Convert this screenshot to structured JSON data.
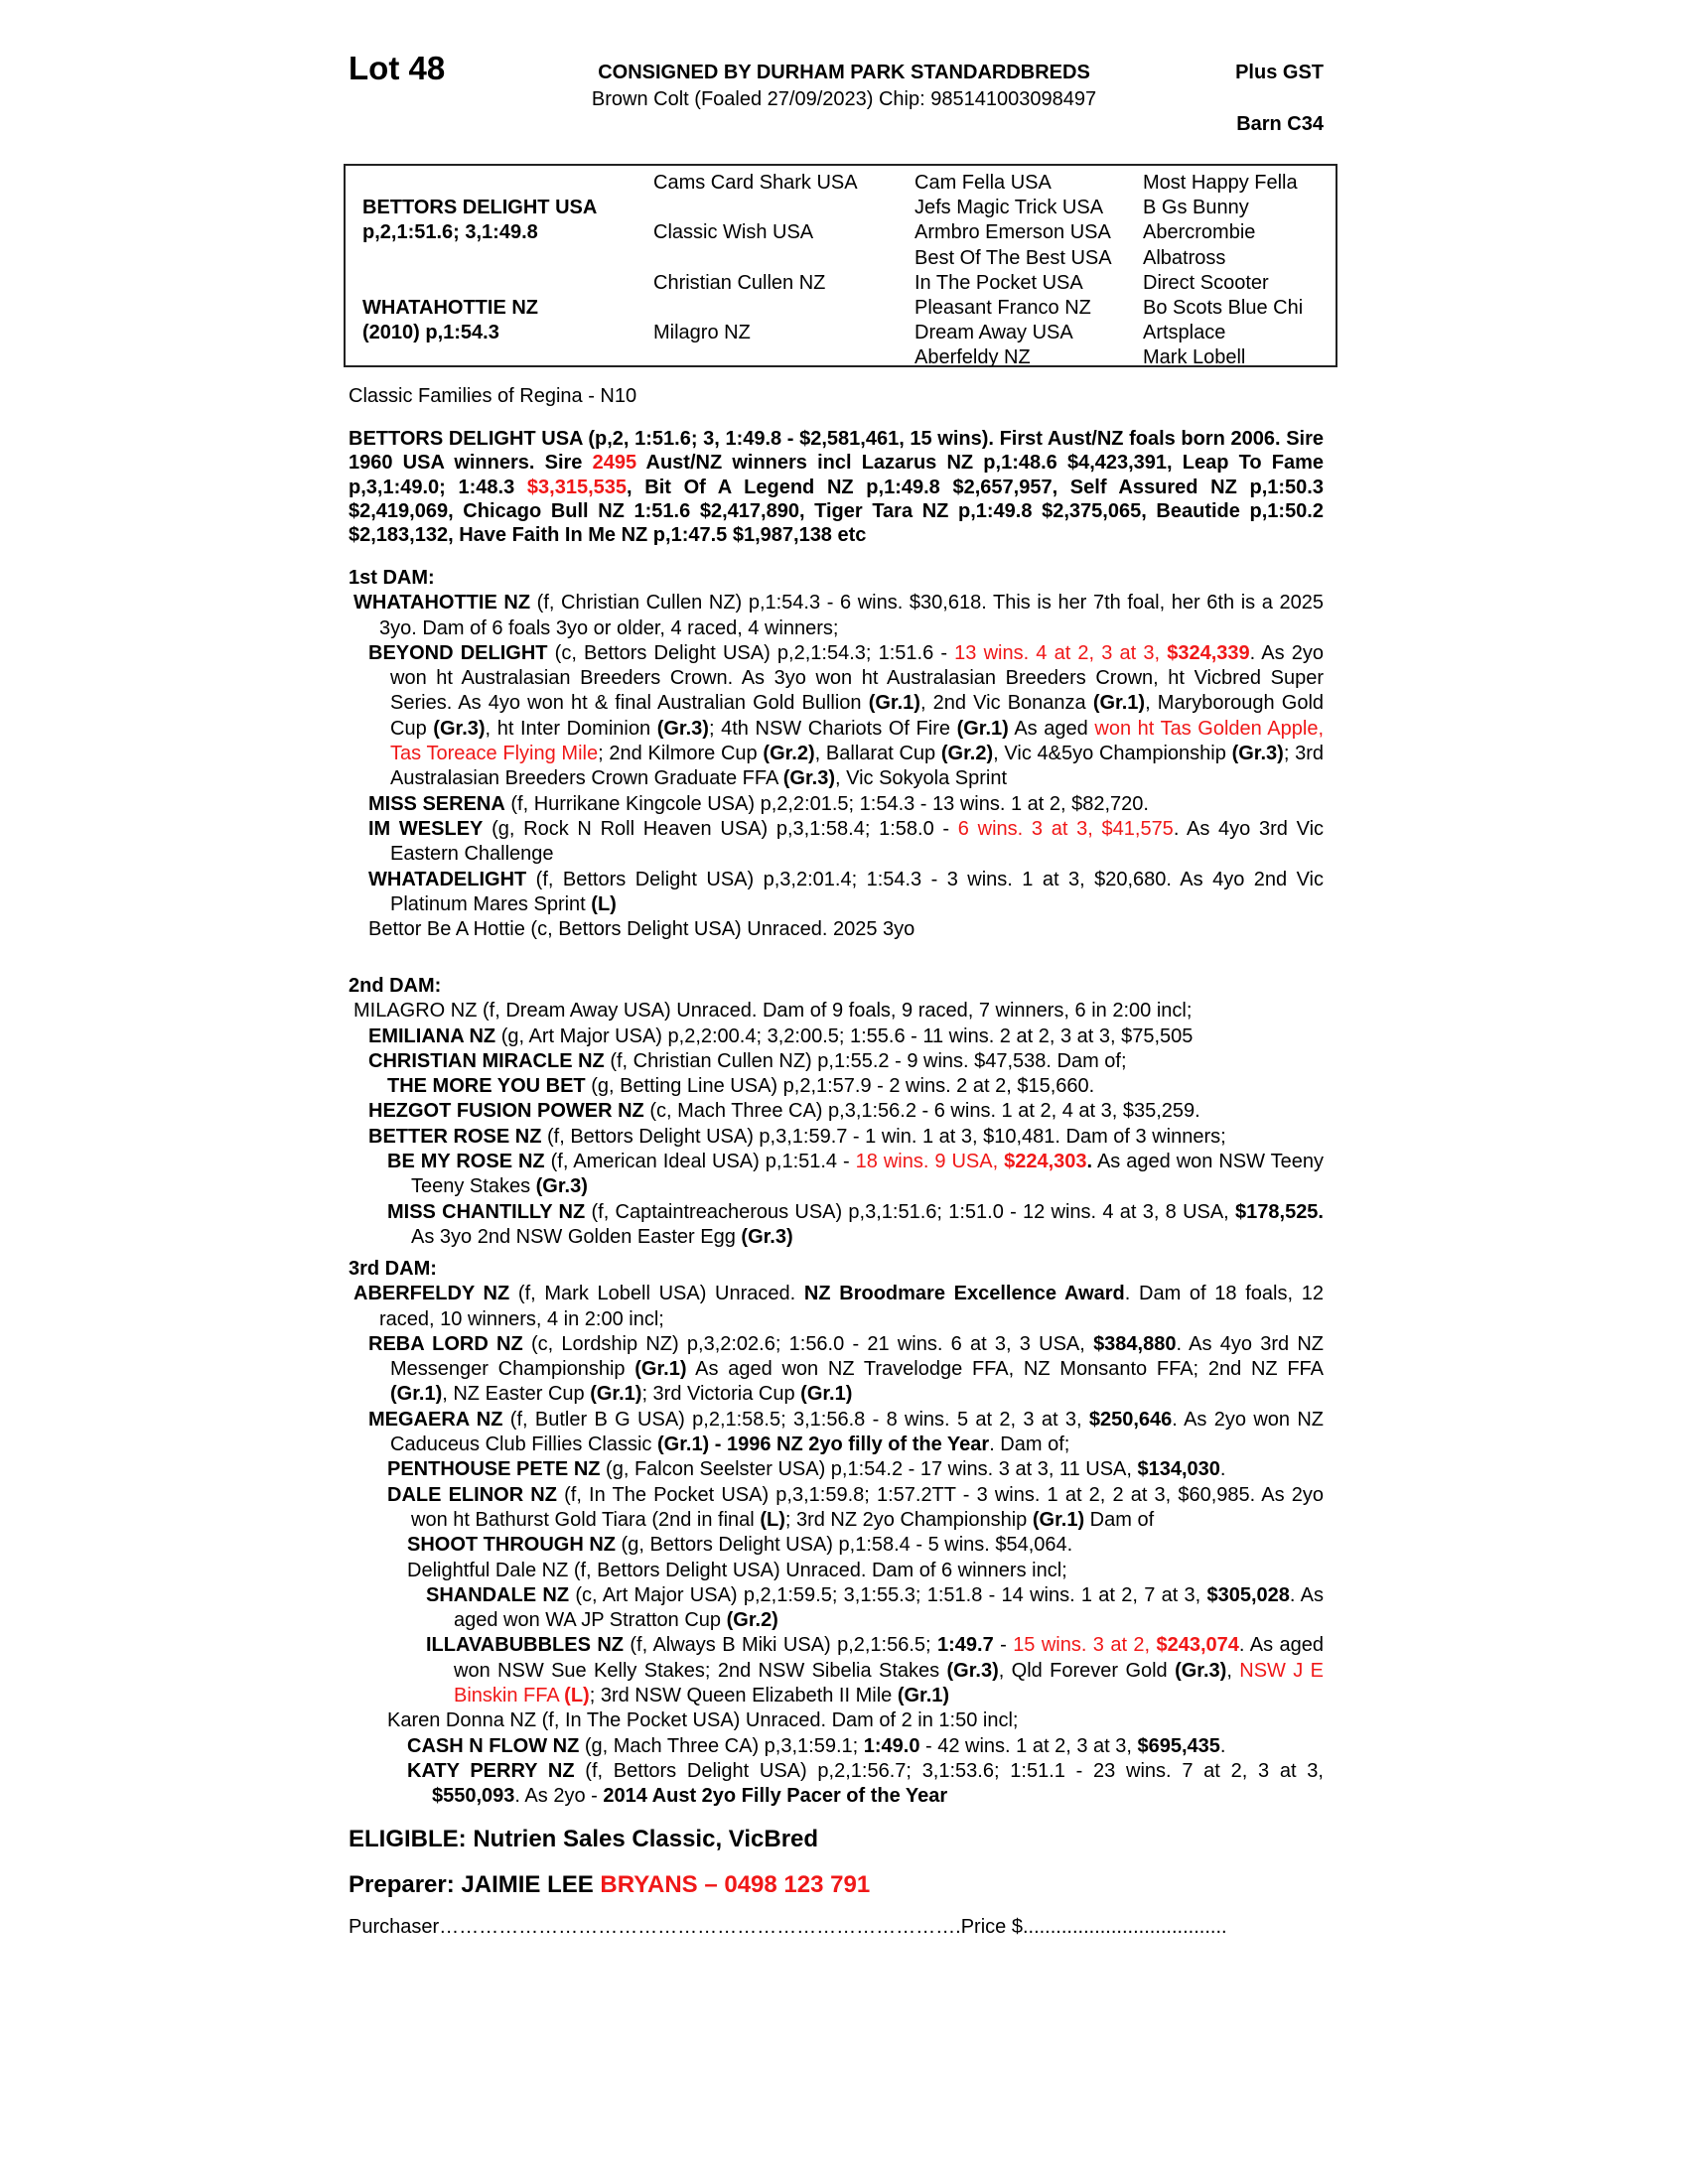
{
  "header": {
    "lot": "Lot 48",
    "consignor": "CONSIGNED BY DURHAM PARK STANDARDBREDS",
    "description": "Brown Colt (Foaled 27/09/2023) Chip: 985141003098497",
    "gst": "Plus GST",
    "barn": "Barn C34"
  },
  "pedigree": {
    "sire": "BETTORS DELIGHT USA",
    "sire_record": "p,2,1:51.6; 3,1:49.8",
    "dam": "WHATAHOTTIE NZ",
    "dam_record": "(2010) p,1:54.3",
    "gen2": [
      "Cams Card Shark USA",
      "Classic Wish USA",
      "Christian Cullen NZ",
      "Milagro NZ"
    ],
    "gen3": [
      "Cam Fella USA",
      "Jefs Magic Trick USA",
      "Armbro Emerson USA",
      "Best Of The Best USA",
      "In The Pocket USA",
      "Pleasant Franco NZ",
      "Dream Away USA",
      "Aberfeldy NZ"
    ],
    "gen4": [
      "Most Happy Fella",
      "B Gs Bunny",
      "Abercrombie",
      "Albatross",
      "Direct Scooter",
      "Bo Scots Blue Chi",
      "Artsplace",
      "Mark Lobell"
    ]
  },
  "family": "Classic Families of Regina - N10",
  "accent_color": "#f01818",
  "sire_para": [
    [
      "BETTORS DELIGHT USA (p,2, 1:51.6; 3, 1:49.8 - $2,581,461, 15 wins). First Aust/NZ foals born 2006. Sire 1960 USA winners. Sire ",
      "b"
    ],
    [
      "2495",
      "br"
    ],
    [
      " Aust/NZ winners incl Lazarus NZ p,1:48.6 $4,423,391, Leap To Fame p,3,1:49.0; 1:48.3 ",
      "b"
    ],
    [
      "$3,315,535",
      "br"
    ],
    [
      ", Bit Of A Legend NZ p,1:49.8 $2,657,957, Self Assured NZ p,1:50.3 $2,419,069, Chicago Bull NZ 1:51.6 $2,417,890,  Tiger Tara NZ p,1:49.8 $2,375,065, Beautide p,1:50.2 $2,183,132, Have Faith In Me NZ p,1:47.5 $1,987,138 etc",
      "b"
    ]
  ],
  "sections": [
    {
      "heading": "1st DAM:",
      "entries": [
        {
          "lvl": 0,
          "segs": [
            [
              "WHATAHOTTIE NZ",
              "b"
            ],
            [
              " (f, Christian Cullen NZ) p,1:54.3 - 6 wins. $30,618. This is her 7th foal, her 6th is a 2025 3yo. Dam of 6 foals 3yo or older, 4 raced, 4 winners;",
              ""
            ]
          ]
        },
        {
          "lvl": 1,
          "segs": [
            [
              "BEYOND DELIGHT",
              "b"
            ],
            [
              " (c, Bettors Delight USA) p,2,1:54.3; 1:51.6 - ",
              ""
            ],
            [
              "13 wins. 4 at 2, 3 at 3, ",
              "r"
            ],
            [
              "$324,339",
              "br"
            ],
            [
              ". As 2yo won ht Australasian Breeders Crown. As 3yo won ht Australasian Breeders Crown, ht Vicbred Super Series. As 4yo won ht & final Australian Gold Bullion ",
              ""
            ],
            [
              "(Gr.1)",
              "b"
            ],
            [
              ", 2nd Vic Bonanza ",
              ""
            ],
            [
              "(Gr.1)",
              "b"
            ],
            [
              ", Maryborough Gold Cup ",
              ""
            ],
            [
              "(Gr.3)",
              "b"
            ],
            [
              ", ht Inter Dominion ",
              ""
            ],
            [
              "(Gr.3)",
              "b"
            ],
            [
              "; 4th NSW Chariots Of Fire ",
              ""
            ],
            [
              "(Gr.1)",
              "b"
            ],
            [
              " As aged ",
              ""
            ],
            [
              "won ht Tas Golden Apple, Tas Toreace Flying Mile",
              "r"
            ],
            [
              "; 2nd Kilmore Cup ",
              ""
            ],
            [
              "(Gr.2)",
              "b"
            ],
            [
              ", Ballarat Cup ",
              ""
            ],
            [
              "(Gr.2)",
              "b"
            ],
            [
              ", Vic 4&5yo Championship ",
              ""
            ],
            [
              "(Gr.3)",
              "b"
            ],
            [
              "; 3rd Australasian Breeders Crown Graduate FFA ",
              ""
            ],
            [
              "(Gr.3)",
              "b"
            ],
            [
              ", Vic Sokyola Sprint",
              ""
            ]
          ]
        },
        {
          "lvl": 1,
          "segs": [
            [
              "MISS SERENA",
              "b"
            ],
            [
              " (f, Hurrikane Kingcole USA) p,2,2:01.5; 1:54.3 - 13 wins. 1 at 2, $82,720.",
              ""
            ]
          ]
        },
        {
          "lvl": 1,
          "segs": [
            [
              "IM WESLEY",
              "b"
            ],
            [
              " (g, Rock N Roll Heaven USA) p,3,1:58.4; 1:58.0 - ",
              ""
            ],
            [
              "6 wins. 3 at 3, $41,575",
              "r"
            ],
            [
              ". As 4yo 3rd Vic Eastern Challenge",
              ""
            ]
          ]
        },
        {
          "lvl": 1,
          "segs": [
            [
              "WHATADELIGHT",
              "b"
            ],
            [
              " (f, Bettors Delight USA) p,3,2:01.4; 1:54.3 - 3 wins. 1 at 3, $20,680. As 4yo 2nd Vic Platinum Mares Sprint ",
              ""
            ],
            [
              "(L)",
              "b"
            ]
          ]
        },
        {
          "lvl": 1,
          "segs": [
            [
              "Bettor Be A Hottie (c, Bettors Delight USA) Unraced. 2025 3yo",
              ""
            ]
          ]
        }
      ]
    },
    {
      "heading": "2nd DAM:",
      "entries": [
        {
          "lvl": 0,
          "segs": [
            [
              "MILAGRO NZ (f, Dream Away USA) Unraced. Dam of 9 foals, 9 raced, 7 winners, 6 in 2:00 incl;",
              ""
            ]
          ]
        },
        {
          "lvl": 1,
          "segs": [
            [
              "EMILIANA NZ",
              "b"
            ],
            [
              " (g, Art Major USA) p,2,2:00.4; 3,2:00.5; 1:55.6 - 11 wins. 2 at 2, 3 at 3, $75,505",
              ""
            ]
          ]
        },
        {
          "lvl": 1,
          "segs": [
            [
              "CHRISTIAN MIRACLE NZ",
              "b"
            ],
            [
              " (f, Christian Cullen NZ) p,1:55.2 - 9 wins. $47,538. Dam of;",
              ""
            ]
          ]
        },
        {
          "lvl": 2,
          "segs": [
            [
              "THE MORE YOU BET",
              "b"
            ],
            [
              " (g, Betting Line USA) p,2,1:57.9 - 2 wins. 2 at 2, $15,660.",
              ""
            ]
          ]
        },
        {
          "lvl": 1,
          "segs": [
            [
              "HEZGOT FUSION POWER NZ",
              "b"
            ],
            [
              " (c, Mach Three CA) p,3,1:56.2 - 6 wins. 1 at 2, 4 at 3, $35,259.",
              ""
            ]
          ]
        },
        {
          "lvl": 1,
          "segs": [
            [
              "BETTER ROSE NZ",
              "b"
            ],
            [
              " (f, Bettors Delight USA) p,3,1:59.7 - 1 win. 1 at 3, $10,481. Dam of 3 winners;",
              ""
            ]
          ]
        },
        {
          "lvl": 2,
          "segs": [
            [
              "BE MY ROSE NZ",
              "b"
            ],
            [
              " (f, American Ideal USA) p,1:51.4 - ",
              ""
            ],
            [
              "18 wins. 9 USA, ",
              "r"
            ],
            [
              "$224,303",
              "br"
            ],
            [
              ".",
              "b"
            ],
            [
              " As aged won NSW Teeny Teeny Stakes ",
              ""
            ],
            [
              "(Gr.3)",
              "b"
            ]
          ]
        },
        {
          "lvl": 2,
          "segs": [
            [
              "MISS CHANTILLY NZ",
              "b"
            ],
            [
              " (f, Captaintreacherous USA) p,3,1:51.6; 1:51.0 - 12 wins. 4 at 3, 8 USA, ",
              ""
            ],
            [
              "$178,525.",
              "b"
            ],
            [
              " As 3yo 2nd NSW Golden Easter Egg ",
              ""
            ],
            [
              "(Gr.3)",
              "b"
            ]
          ]
        }
      ]
    },
    {
      "heading": "3rd DAM:",
      "entries": [
        {
          "lvl": 0,
          "segs": [
            [
              "ABERFELDY NZ",
              "b"
            ],
            [
              " (f, Mark Lobell USA) Unraced. ",
              ""
            ],
            [
              "NZ Broodmare Excellence Award",
              "b"
            ],
            [
              ". Dam of 18 foals, 12 raced, 10 winners, 4 in 2:00 incl;",
              ""
            ]
          ]
        },
        {
          "lvl": 1,
          "segs": [
            [
              "REBA LORD NZ",
              "b"
            ],
            [
              " (c, Lordship NZ) p,3,2:02.6; 1:56.0 - 21 wins. 6 at 3, 3 USA, ",
              ""
            ],
            [
              "$384,880",
              "b"
            ],
            [
              ". As 4yo 3rd NZ Messenger Championship ",
              ""
            ],
            [
              "(Gr.1)",
              "b"
            ],
            [
              " As aged won NZ Travelodge FFA, NZ Monsanto FFA; 2nd NZ FFA ",
              ""
            ],
            [
              "(Gr.1)",
              "b"
            ],
            [
              ", NZ Easter Cup ",
              ""
            ],
            [
              "(Gr.1)",
              "b"
            ],
            [
              "; 3rd Victoria Cup ",
              ""
            ],
            [
              "(Gr.1)",
              "b"
            ]
          ]
        },
        {
          "lvl": 1,
          "segs": [
            [
              "MEGAERA NZ",
              "b"
            ],
            [
              " (f, Butler B G USA) p,2,1:58.5; 3,1:56.8 - 8 wins. 5 at 2, 3 at 3, ",
              ""
            ],
            [
              "$250,646",
              "b"
            ],
            [
              ". As 2yo won NZ Caduceus Club Fillies Classic ",
              ""
            ],
            [
              "(Gr.1) - 1996 NZ 2yo filly of the Year",
              "b"
            ],
            [
              ". Dam of;",
              ""
            ]
          ]
        },
        {
          "lvl": 2,
          "segs": [
            [
              "PENTHOUSE PETE NZ",
              "b"
            ],
            [
              " (g, Falcon Seelster USA) p,1:54.2 - 17 wins. 3 at 3, 11 USA, ",
              ""
            ],
            [
              "$134,030",
              "b"
            ],
            [
              ".",
              ""
            ]
          ]
        },
        {
          "lvl": 2,
          "segs": [
            [
              "DALE ELINOR NZ",
              "b"
            ],
            [
              " (f, In The Pocket USA) p,3,1:59.8; 1:57.2TT - 3 wins. 1 at 2, 2 at 3, $60,985. As 2yo won ht Bathurst Gold Tiara (2nd in final ",
              ""
            ],
            [
              "(L)",
              "b"
            ],
            [
              "; 3rd NZ 2yo Championship ",
              ""
            ],
            [
              "(Gr.1)",
              "b"
            ],
            [
              " Dam of",
              ""
            ]
          ]
        },
        {
          "lvl": 3,
          "segs": [
            [
              "SHOOT THROUGH NZ",
              "b"
            ],
            [
              " (g, Bettors Delight USA) p,1:58.4 - 5 wins. $54,064.",
              ""
            ]
          ]
        },
        {
          "lvl": 3,
          "segs": [
            [
              "Delightful Dale NZ (f, Bettors Delight USA) Unraced. Dam of 6 winners incl;",
              ""
            ]
          ]
        },
        {
          "lvl": 4,
          "segs": [
            [
              "SHANDALE NZ",
              "b"
            ],
            [
              " (c, Art Major USA) p,2,1:59.5; 3,1:55.3; 1:51.8 - 14 wins. 1 at 2, 7 at 3, ",
              ""
            ],
            [
              "$305,028",
              "b"
            ],
            [
              ". As aged won WA JP Stratton Cup ",
              ""
            ],
            [
              "(Gr.2)",
              "b"
            ]
          ]
        },
        {
          "lvl": 4,
          "segs": [
            [
              "ILLAVABUBBLES NZ",
              "b"
            ],
            [
              " (f, Always B Miki USA) p,2,1:56.5; ",
              ""
            ],
            [
              "1:49.7",
              "b"
            ],
            [
              " - ",
              ""
            ],
            [
              "15 wins. 3 at 2, ",
              "r"
            ],
            [
              "$243,074",
              "br"
            ],
            [
              ". As aged won NSW Sue Kelly Stakes; 2nd NSW Sibelia Stakes ",
              ""
            ],
            [
              "(Gr.3)",
              "b"
            ],
            [
              ", Qld Forever Gold ",
              ""
            ],
            [
              "(Gr.3)",
              "b"
            ],
            [
              ", ",
              ""
            ],
            [
              "NSW J E Binskin FFA ",
              "r"
            ],
            [
              "(L)",
              "br"
            ],
            [
              "; 3rd NSW Queen Elizabeth II Mile ",
              ""
            ],
            [
              "(Gr.1)",
              "b"
            ]
          ]
        },
        {
          "lvl": 2,
          "segs": [
            [
              "Karen Donna NZ (f, In The Pocket USA) Unraced. Dam of 2 in 1:50 incl;",
              ""
            ]
          ]
        },
        {
          "lvl": 3,
          "segs": [
            [
              "CASH N FLOW NZ",
              "b"
            ],
            [
              " (g, Mach Three CA) p,3,1:59.1; ",
              ""
            ],
            [
              "1:49.0",
              "b"
            ],
            [
              " - 42 wins. 1 at 2, 3 at 3, ",
              ""
            ],
            [
              "$695,435",
              "b"
            ],
            [
              ".",
              ""
            ]
          ]
        },
        {
          "lvl": 3,
          "segs": [
            [
              "KATY PERRY NZ",
              "b"
            ],
            [
              " (f, Bettors Delight USA) p,2,1:56.7; 3,1:53.6; 1:51.1 - 23 wins. 7 at 2, 3 at 3, ",
              ""
            ],
            [
              "$550,093",
              "b"
            ],
            [
              ". As 2yo - ",
              ""
            ],
            [
              "2014 Aust 2yo Filly Pacer of the Year",
              "b"
            ]
          ]
        }
      ]
    }
  ],
  "footer": {
    "eligible": "ELIGIBLE: Nutrien Sales Classic, VicBred",
    "preparer_label": "Preparer: JAIMIE LEE ",
    "preparer_contact": "BRYANS – 0498 123 791",
    "purchaser": "Purchaser…………………………………………………………………….Price $....................................."
  }
}
